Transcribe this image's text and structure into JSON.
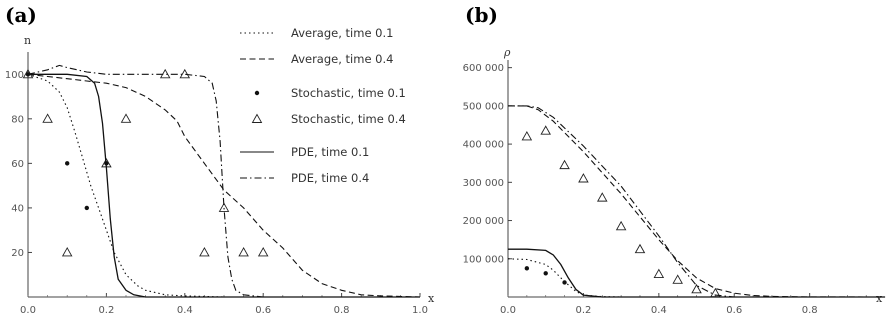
{
  "chart_data": [
    {
      "type": "line",
      "panel_label": "(a)",
      "xlabel": "x",
      "ylabel": "n",
      "xlim": [
        0,
        1.0
      ],
      "ylim": [
        0,
        110
      ],
      "xticks": [
        "0.0",
        "0.2",
        "0.4",
        "0.6",
        "0.8",
        "1.0"
      ],
      "yticks": [
        "20",
        "40",
        "60",
        "80",
        "100"
      ],
      "legend_position": "top-right",
      "series": [
        {
          "name": "Average, time 0.1",
          "style": "dotted",
          "kind": "line",
          "x": [
            0,
            0.05,
            0.08,
            0.1,
            0.12,
            0.14,
            0.16,
            0.18,
            0.2,
            0.22,
            0.25,
            0.28,
            0.3,
            0.35,
            0.4,
            0.5,
            0.6,
            1.0
          ],
          "y": [
            100,
            97,
            92,
            85,
            74,
            62,
            50,
            40,
            30,
            20,
            10,
            5,
            3,
            1,
            0.5,
            0,
            0,
            0
          ]
        },
        {
          "name": "Average, time 0.4",
          "style": "dashed",
          "kind": "line",
          "x": [
            0,
            0.05,
            0.1,
            0.15,
            0.2,
            0.25,
            0.3,
            0.35,
            0.38,
            0.4,
            0.45,
            0.5,
            0.55,
            0.6,
            0.65,
            0.7,
            0.75,
            0.8,
            0.85,
            0.9,
            1.0
          ],
          "y": [
            100,
            99,
            98,
            97,
            96,
            94,
            90,
            84,
            79,
            72,
            60,
            48,
            40,
            30,
            22,
            12,
            6,
            3,
            1,
            0.5,
            0
          ]
        },
        {
          "name": "Stochastic, time 0.1",
          "style": "dot",
          "kind": "scatter",
          "x": [
            0.1,
            0.15,
            0.2,
            0.0
          ],
          "y": [
            60,
            40,
            60,
            100
          ]
        },
        {
          "name": "Stochastic, time 0.4",
          "style": "triangle",
          "kind": "scatter",
          "x": [
            0.0,
            0.05,
            0.1,
            0.2,
            0.25,
            0.35,
            0.4,
            0.45,
            0.5,
            0.55,
            0.6
          ],
          "y": [
            100,
            80,
            20,
            60,
            80,
            100,
            100,
            20,
            40,
            20,
            20
          ]
        },
        {
          "name": "PDE, time 0.1",
          "style": "solid",
          "kind": "line",
          "x": [
            0,
            0.05,
            0.1,
            0.15,
            0.17,
            0.18,
            0.19,
            0.2,
            0.21,
            0.22,
            0.23,
            0.25,
            0.27,
            0.3,
            0.35,
            1.0
          ],
          "y": [
            100,
            100,
            100,
            99,
            96,
            90,
            78,
            58,
            35,
            18,
            8,
            3,
            1,
            0,
            0,
            0
          ]
        },
        {
          "name": "PDE, time 0.4",
          "style": "dashdot",
          "kind": "line",
          "x": [
            0,
            0.05,
            0.08,
            0.1,
            0.15,
            0.2,
            0.3,
            0.4,
            0.45,
            0.47,
            0.48,
            0.49,
            0.5,
            0.51,
            0.52,
            0.53,
            0.55,
            0.6,
            1.0
          ],
          "y": [
            100,
            102,
            104,
            103,
            101,
            100,
            100,
            100,
            99,
            96,
            88,
            70,
            40,
            18,
            8,
            3,
            1,
            0,
            0
          ]
        }
      ]
    },
    {
      "type": "line",
      "panel_label": "(b)",
      "xlabel": "x",
      "ylabel": "ρ",
      "xlim": [
        0,
        0.96
      ],
      "ylim": [
        0,
        620000
      ],
      "xticks": [
        "0.0",
        "0.2",
        "0.4",
        "0.6",
        "0.8"
      ],
      "yticks": [
        "100 000",
        "200 000",
        "300 000",
        "400 000",
        "500 000",
        "600 000"
      ],
      "series": [
        {
          "name": "Average, time 0.1",
          "style": "dotted",
          "kind": "line",
          "x": [
            0,
            0.05,
            0.1,
            0.12,
            0.15,
            0.18,
            0.2,
            0.25,
            0.3,
            1.0
          ],
          "y": [
            100000,
            98000,
            85000,
            70000,
            40000,
            15000,
            5000,
            1000,
            0,
            0
          ]
        },
        {
          "name": "Average, time 0.4",
          "style": "dashed",
          "kind": "line",
          "x": [
            0,
            0.05,
            0.08,
            0.12,
            0.2,
            0.3,
            0.4,
            0.45,
            0.5,
            0.55,
            0.6,
            0.65,
            0.7,
            0.8,
            0.96
          ],
          "y": [
            500000,
            500000,
            490000,
            460000,
            380000,
            270000,
            150000,
            95000,
            50000,
            22000,
            10000,
            4000,
            1500,
            300,
            0
          ]
        },
        {
          "name": "Stochastic, time 0.1",
          "style": "dot",
          "kind": "scatter",
          "x": [
            0.05,
            0.1,
            0.15
          ],
          "y": [
            75000,
            62000,
            38000
          ]
        },
        {
          "name": "Stochastic, time 0.4",
          "style": "triangle",
          "kind": "scatter",
          "x": [
            0.05,
            0.1,
            0.15,
            0.2,
            0.25,
            0.3,
            0.35,
            0.4,
            0.45,
            0.5,
            0.55
          ],
          "y": [
            420000,
            435000,
            345000,
            310000,
            260000,
            185000,
            125000,
            60000,
            45000,
            20000,
            10000
          ]
        },
        {
          "name": "PDE, time 0.1",
          "style": "solid",
          "kind": "line",
          "x": [
            0,
            0.05,
            0.1,
            0.12,
            0.14,
            0.16,
            0.18,
            0.2,
            0.25,
            1.0
          ],
          "y": [
            125000,
            125000,
            122000,
            110000,
            85000,
            50000,
            20000,
            5000,
            0,
            0
          ]
        },
        {
          "name": "PDE, time 0.4",
          "style": "dashdot",
          "kind": "line",
          "x": [
            0,
            0.05,
            0.08,
            0.12,
            0.2,
            0.3,
            0.4,
            0.45,
            0.5,
            0.55,
            0.6,
            0.96
          ],
          "y": [
            500000,
            500000,
            495000,
            470000,
            395000,
            290000,
            160000,
            90000,
            30000,
            5000,
            0,
            0
          ]
        }
      ]
    }
  ]
}
